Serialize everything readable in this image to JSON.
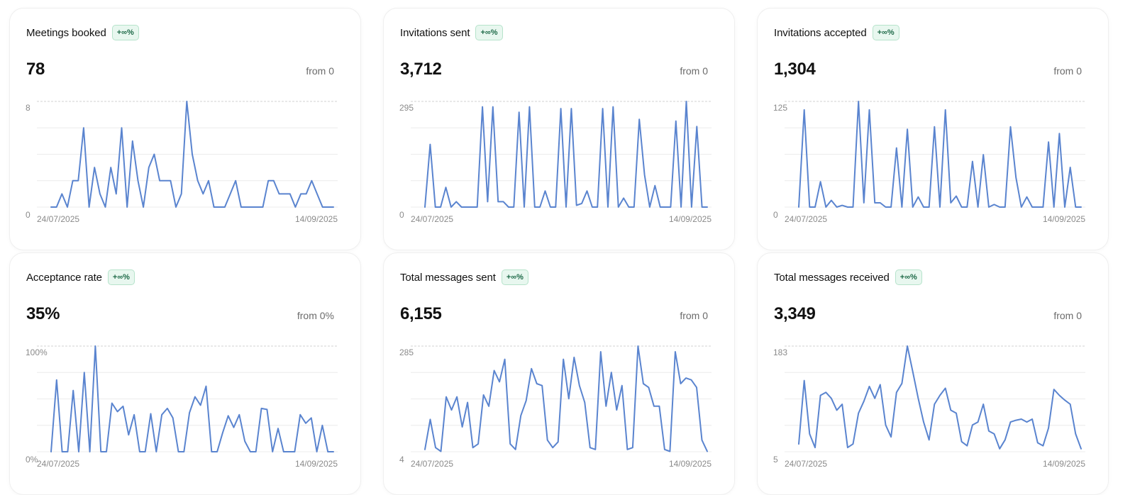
{
  "colors": {
    "line": "#5a84cf",
    "grid": "#ececec",
    "top_grid": "#d0d0d0",
    "badge_text": "#1e6a48",
    "badge_bg": "#e8f7ef"
  },
  "cards": [
    {
      "title": "Meetings booked",
      "badge": "+∞%",
      "value": "78",
      "from": "from 0",
      "chart_data": {
        "type": "line",
        "x_start": "24/07/2025",
        "x_end": "14/09/2025",
        "ymin_label": "0",
        "ymax_label": "8",
        "ylim": [
          0,
          8
        ],
        "values": [
          0,
          0,
          1,
          0,
          2,
          2,
          6,
          0,
          3,
          1,
          0,
          3,
          1,
          6,
          0,
          5,
          2,
          0,
          3,
          4,
          2,
          2,
          2,
          0,
          1,
          8,
          4,
          2,
          1,
          2,
          0,
          0,
          0,
          1,
          2,
          0,
          0,
          0,
          0,
          0,
          2,
          2,
          1,
          1,
          1,
          0,
          1,
          1,
          2,
          1,
          0,
          0,
          0
        ]
      }
    },
    {
      "title": "Invitations sent",
      "badge": "+∞%",
      "value": "3,712",
      "from": "from 0",
      "chart_data": {
        "type": "line",
        "x_start": "24/07/2025",
        "x_end": "14/09/2025",
        "ymin_label": "0",
        "ymax_label": "295",
        "ylim": [
          0,
          295
        ],
        "values": [
          0,
          175,
          0,
          0,
          55,
          0,
          15,
          0,
          0,
          0,
          0,
          280,
          15,
          280,
          15,
          15,
          0,
          0,
          265,
          0,
          280,
          0,
          0,
          45,
          0,
          0,
          275,
          0,
          275,
          5,
          10,
          45,
          0,
          0,
          275,
          0,
          280,
          0,
          25,
          0,
          0,
          245,
          90,
          0,
          60,
          0,
          0,
          0,
          240,
          0,
          295,
          0,
          225,
          0,
          0
        ]
      }
    },
    {
      "title": "Invitations accepted",
      "badge": "+∞%",
      "value": "1,304",
      "from": "from 0",
      "chart_data": {
        "type": "line",
        "x_start": "24/07/2025",
        "x_end": "14/09/2025",
        "ymin_label": "0",
        "ymax_label": "125",
        "ylim": [
          0,
          125
        ],
        "values": [
          0,
          115,
          0,
          0,
          30,
          0,
          8,
          0,
          2,
          0,
          0,
          125,
          5,
          115,
          5,
          5,
          0,
          0,
          70,
          0,
          92,
          0,
          12,
          0,
          0,
          95,
          0,
          115,
          5,
          13,
          0,
          0,
          54,
          0,
          62,
          0,
          3,
          0,
          0,
          95,
          35,
          0,
          12,
          0,
          0,
          0,
          77,
          0,
          87,
          0,
          47,
          0,
          0
        ]
      }
    },
    {
      "title": "Acceptance rate",
      "badge": "+∞%",
      "value": "35%",
      "from": "from 0%",
      "chart_data": {
        "type": "line",
        "x_start": "24/07/2025",
        "x_end": "14/09/2025",
        "ymin_label": "0%",
        "ymax_label": "100%",
        "ylim": [
          0,
          100
        ],
        "values": [
          0,
          68,
          0,
          0,
          58,
          0,
          75,
          0,
          100,
          0,
          0,
          46,
          38,
          43,
          16,
          35,
          0,
          0,
          36,
          0,
          35,
          41,
          32,
          0,
          0,
          37,
          52,
          44,
          62,
          0,
          0,
          18,
          34,
          23,
          35,
          10,
          0,
          0,
          41,
          40,
          0,
          22,
          0,
          0,
          0,
          35,
          27,
          32,
          0,
          25,
          0,
          0
        ]
      }
    },
    {
      "title": "Total messages sent",
      "badge": "+∞%",
      "value": "6,155",
      "from": "from 0",
      "chart_data": {
        "type": "line",
        "x_start": "24/07/2025",
        "x_end": "14/09/2025",
        "ymin_label": "4",
        "ymax_label": "285",
        "ylim": [
          4,
          285
        ],
        "values": [
          10,
          90,
          15,
          5,
          150,
          115,
          150,
          70,
          135,
          15,
          25,
          155,
          125,
          220,
          190,
          250,
          25,
          10,
          100,
          140,
          225,
          185,
          180,
          35,
          15,
          30,
          250,
          145,
          255,
          180,
          135,
          15,
          10,
          270,
          125,
          215,
          115,
          180,
          10,
          15,
          285,
          185,
          175,
          125,
          125,
          10,
          5,
          270,
          185,
          200,
          195,
          175,
          35,
          5
        ]
      }
    },
    {
      "title": "Total messages received",
      "badge": "+∞%",
      "value": "3,349",
      "from": "from 0",
      "chart_data": {
        "type": "line",
        "x_start": "24/07/2025",
        "x_end": "14/09/2025",
        "ymin_label": "5",
        "ymax_label": "183",
        "ylim": [
          5,
          183
        ],
        "values": [
          18,
          125,
          35,
          12,
          100,
          105,
          95,
          75,
          85,
          12,
          18,
          70,
          90,
          115,
          95,
          118,
          50,
          30,
          105,
          120,
          183,
          140,
          95,
          55,
          25,
          85,
          100,
          112,
          75,
          70,
          22,
          15,
          50,
          55,
          85,
          40,
          35,
          10,
          25,
          55,
          58,
          60,
          55,
          60,
          20,
          15,
          45,
          110,
          100,
          92,
          85,
          35,
          10
        ]
      }
    }
  ]
}
